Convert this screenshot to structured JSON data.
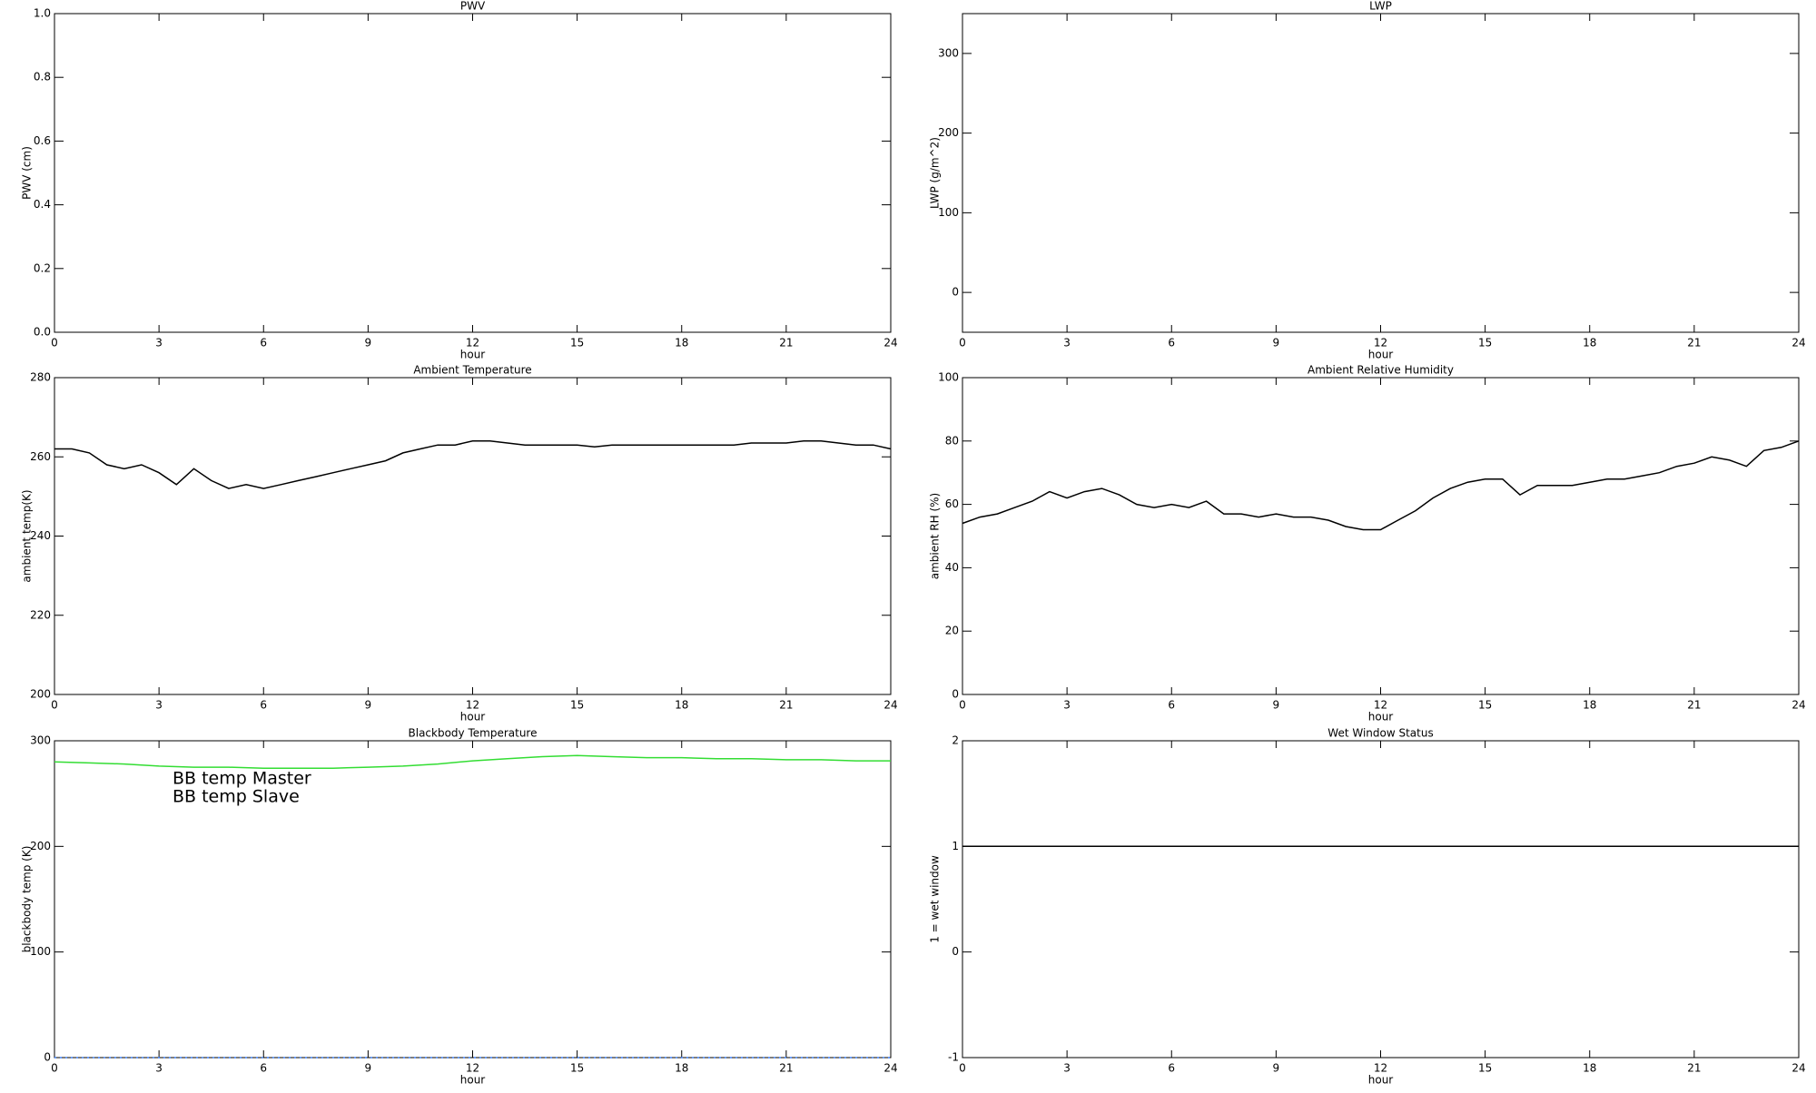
{
  "chart_data": [
    {
      "type": "line",
      "title": "PWV",
      "xlabel": "hour",
      "ylabel": "PWV (cm)",
      "xlim": [
        0,
        24
      ],
      "xticks": [
        0,
        3,
        6,
        9,
        12,
        15,
        18,
        21,
        24
      ],
      "ylim": [
        0,
        1
      ],
      "yticks": [
        {
          "value": 0,
          "label": "0.0"
        },
        0.2,
        0.4,
        0.6,
        0.8,
        {
          "value": 1,
          "label": "1.0"
        }
      ],
      "x": [],
      "series": []
    },
    {
      "type": "line",
      "title": "LWP",
      "xlabel": "hour",
      "ylabel": "LWP (g/m^2)",
      "xlim": [
        0,
        24
      ],
      "xticks": [
        0,
        3,
        6,
        9,
        12,
        15,
        18,
        21,
        24
      ],
      "ylim": [
        -50,
        350
      ],
      "yticks": [
        0,
        100,
        200,
        300
      ],
      "x": [],
      "series": []
    },
    {
      "type": "line",
      "title": "Ambient Temperature",
      "xlabel": "hour",
      "ylabel": "ambient temp(K)",
      "xlim": [
        0,
        24
      ],
      "xticks": [
        0,
        3,
        6,
        9,
        12,
        15,
        18,
        21,
        24
      ],
      "ylim": [
        200,
        280
      ],
      "yticks": [
        200,
        220,
        240,
        260,
        280
      ],
      "x": [
        0,
        0.5,
        1,
        1.5,
        2,
        2.5,
        3,
        3.5,
        4,
        4.5,
        5,
        5.5,
        6,
        6.5,
        7,
        7.5,
        8,
        8.5,
        9,
        9.5,
        10,
        10.5,
        11,
        11.5,
        12,
        12.5,
        13,
        13.5,
        14,
        14.5,
        15,
        15.5,
        16,
        16.5,
        17,
        17.5,
        18,
        18.5,
        19,
        19.5,
        20,
        20.5,
        21,
        21.5,
        22,
        22.5,
        23,
        23.5,
        24
      ],
      "series": [
        {
          "color": "#000000",
          "values": [
            262,
            262,
            261,
            258,
            257,
            258,
            256,
            253,
            257,
            254,
            252,
            253,
            252,
            253,
            254,
            255,
            256,
            257,
            258,
            259,
            261,
            262,
            263,
            263,
            264,
            264,
            263.5,
            263,
            263,
            263,
            263,
            262.5,
            263,
            263,
            263,
            263,
            263,
            263,
            263,
            263,
            263.5,
            263.5,
            263.5,
            264,
            264,
            263.5,
            263,
            263,
            262
          ]
        }
      ]
    },
    {
      "type": "line",
      "title": "Ambient Relative Humidity",
      "xlabel": "hour",
      "ylabel": "ambient RH (%)",
      "xlim": [
        0,
        24
      ],
      "xticks": [
        0,
        3,
        6,
        9,
        12,
        15,
        18,
        21,
        24
      ],
      "ylim": [
        0,
        100
      ],
      "yticks": [
        0,
        20,
        40,
        60,
        80,
        100
      ],
      "x": [
        0,
        0.5,
        1,
        1.5,
        2,
        2.5,
        3,
        3.5,
        4,
        4.5,
        5,
        5.5,
        6,
        6.5,
        7,
        7.5,
        8,
        8.5,
        9,
        9.5,
        10,
        10.5,
        11,
        11.5,
        12,
        12.5,
        13,
        13.5,
        14,
        14.5,
        15,
        15.5,
        16,
        16.5,
        17,
        17.5,
        18,
        18.5,
        19,
        19.5,
        20,
        20.5,
        21,
        21.5,
        22,
        22.5,
        23,
        23.5,
        24
      ],
      "series": [
        {
          "color": "#000000",
          "values": [
            54,
            56,
            57,
            59,
            61,
            64,
            62,
            64,
            65,
            63,
            60,
            59,
            60,
            59,
            61,
            57,
            57,
            56,
            57,
            56,
            56,
            55,
            53,
            52,
            52,
            55,
            58,
            62,
            65,
            67,
            68,
            68,
            63,
            66,
            66,
            66,
            67,
            68,
            68,
            69,
            70,
            72,
            73,
            75,
            74,
            72,
            77,
            78,
            80
          ]
        }
      ]
    },
    {
      "type": "line",
      "title": "Blackbody Temperature",
      "xlabel": "hour",
      "ylabel": "blackbody temp (K)",
      "xlim": [
        0,
        24
      ],
      "xticks": [
        0,
        3,
        6,
        9,
        12,
        15,
        18,
        21,
        24
      ],
      "ylim": [
        0,
        300
      ],
      "yticks": [
        0,
        100,
        200,
        300
      ],
      "x": [
        0,
        1,
        2,
        3,
        4,
        5,
        6,
        7,
        8,
        9,
        10,
        11,
        12,
        13,
        14,
        15,
        16,
        17,
        18,
        19,
        20,
        21,
        22,
        23,
        24
      ],
      "series": [
        {
          "name": "BB temp Master",
          "color": "#3a7fff",
          "values": [
            0,
            0,
            0,
            0,
            0,
            0,
            0,
            0,
            0,
            0,
            0,
            0,
            0,
            0,
            0,
            0,
            0,
            0,
            0,
            0,
            0,
            0,
            0,
            0,
            0
          ]
        },
        {
          "name": "BB temp Slave",
          "color": "#33dd33",
          "values": [
            280,
            279,
            278,
            276,
            275,
            275,
            274,
            274,
            274,
            275,
            276,
            278,
            281,
            283,
            285,
            286,
            285,
            284,
            284,
            283,
            283,
            282,
            282,
            281,
            281
          ]
        }
      ]
    },
    {
      "type": "line",
      "title": "Wet Window Status",
      "xlabel": "hour",
      "ylabel": "1 = wet window",
      "xlim": [
        0,
        24
      ],
      "xticks": [
        0,
        3,
        6,
        9,
        12,
        15,
        18,
        21,
        24
      ],
      "ylim": [
        -1,
        2
      ],
      "yticks": [
        -1,
        0,
        1,
        2
      ],
      "x": [
        0,
        24
      ],
      "series": [
        {
          "color": "#000000",
          "values": [
            1,
            1
          ]
        }
      ]
    }
  ]
}
